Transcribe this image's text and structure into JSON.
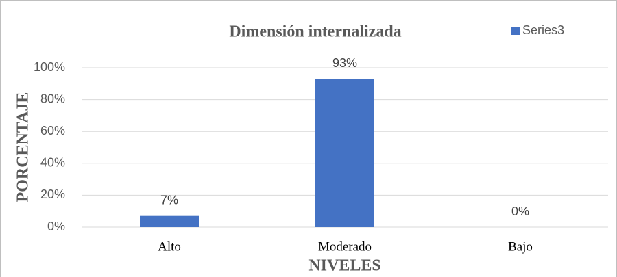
{
  "chart_data": {
    "type": "bar",
    "title": "Dimensión internalizada",
    "x_label": "NIVELES",
    "y_label": "PORCENTAJE",
    "categories": [
      "Alto",
      "Moderado",
      "Bajo"
    ],
    "series": [
      {
        "name": "Series3",
        "color": "#4472c4",
        "values": [
          7,
          93,
          0
        ],
        "value_labels": [
          "7%",
          "93%",
          "0%"
        ]
      }
    ],
    "ylim": [
      0,
      100
    ],
    "yticks": [
      {
        "value": 0,
        "label": "0%"
      },
      {
        "value": 20,
        "label": "20%"
      },
      {
        "value": 40,
        "label": "40%"
      },
      {
        "value": 60,
        "label": "60%"
      },
      {
        "value": 80,
        "label": "80%"
      },
      {
        "value": 100,
        "label": "100%"
      }
    ],
    "grid": true,
    "legend": "top-right"
  }
}
